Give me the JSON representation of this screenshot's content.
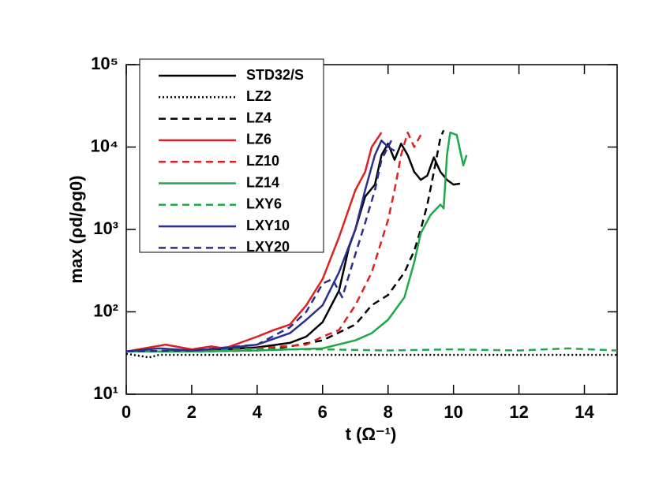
{
  "chart_data": {
    "type": "line",
    "xlabel": "t (Ω⁻¹)",
    "ylabel": "max (ρd/ρg0)",
    "xlim": [
      0,
      15
    ],
    "xticks": [
      0,
      2,
      4,
      6,
      8,
      10,
      12,
      14
    ],
    "ylim": [
      10,
      100000
    ],
    "yticks": [
      {
        "value": 10,
        "label": "10¹"
      },
      {
        "value": 100,
        "label": "10²"
      },
      {
        "value": 1000,
        "label": "10³"
      },
      {
        "value": 10000,
        "label": "10⁴"
      },
      {
        "value": 100000,
        "label": "10⁵"
      }
    ],
    "log_y": true,
    "legend": "upper left",
    "series": [
      {
        "name": "STD32/S",
        "color": "#000000",
        "style": "solid",
        "x": [
          0,
          1,
          2,
          3,
          4,
          5,
          5.5,
          6,
          6.5,
          6.8,
          7,
          7.3,
          7.6,
          7.8,
          8.0,
          8.2,
          8.4,
          8.6,
          8.8,
          9.0,
          9.2,
          9.4,
          9.6,
          9.8,
          10.0,
          10.2
        ],
        "values": [
          33,
          33,
          34,
          35,
          37,
          42,
          50,
          75,
          180,
          600,
          1000,
          2500,
          3500,
          8000,
          11000,
          7000,
          11000,
          8000,
          5000,
          4000,
          4500,
          7500,
          5000,
          4000,
          3500,
          3600
        ]
      },
      {
        "name": "LZ2",
        "color": "#000000",
        "style": "dotted",
        "x": [
          0,
          0.7,
          1,
          2,
          4,
          6,
          8,
          10,
          12,
          15
        ],
        "values": [
          31,
          28,
          30,
          30,
          30,
          30,
          30,
          30,
          30,
          30
        ]
      },
      {
        "name": "LZ4",
        "color": "#000000",
        "style": "dashed",
        "x": [
          0,
          2,
          4,
          5,
          6,
          7,
          7.5,
          8,
          8.5,
          8.8,
          9,
          9.2,
          9.4,
          9.6,
          9.7
        ],
        "values": [
          33,
          33,
          34,
          38,
          45,
          70,
          120,
          160,
          300,
          550,
          1000,
          2000,
          5000,
          13000,
          16000
        ]
      },
      {
        "name": "LZ6",
        "color": "#e02020",
        "style": "solid",
        "x": [
          0,
          1.2,
          2,
          2.6,
          3,
          4,
          4.5,
          5,
          5.5,
          6,
          6.5,
          7,
          7.3,
          7.5,
          7.8
        ],
        "values": [
          33,
          40,
          35,
          38,
          36,
          50,
          60,
          70,
          120,
          250,
          800,
          3000,
          5000,
          10000,
          15000
        ]
      },
      {
        "name": "LZ10",
        "color": "#e02020",
        "style": "dashed",
        "x": [
          0,
          2,
          4,
          5.5,
          6,
          6.5,
          7,
          7.5,
          8,
          8.2,
          8.4,
          8.6,
          8.8,
          9.0
        ],
        "values": [
          33,
          34,
          36,
          40,
          50,
          60,
          120,
          300,
          1300,
          3000,
          8000,
          15000,
          10000,
          14000
        ]
      },
      {
        "name": "LZ14",
        "color": "#1fa84a",
        "style": "solid",
        "x": [
          0,
          2,
          4,
          6,
          7,
          7.5,
          8,
          8.5,
          8.8,
          9,
          9.3,
          9.6,
          9.7,
          9.8,
          9.9,
          10.1,
          10.3,
          10.4
        ],
        "values": [
          33,
          33,
          34,
          36,
          45,
          55,
          80,
          150,
          400,
          900,
          1500,
          2000,
          1800,
          8000,
          15000,
          14000,
          6000,
          8000
        ]
      },
      {
        "name": "LXY6",
        "color": "#1fa84a",
        "style": "dashed",
        "x": [
          0,
          2,
          4,
          6,
          8,
          10,
          12,
          13.5,
          15
        ],
        "values": [
          33,
          34,
          35,
          35,
          34,
          35,
          34,
          36,
          34
        ]
      },
      {
        "name": "LXY10",
        "color": "#2a2f8f",
        "style": "solid",
        "x": [
          0,
          1,
          2,
          3,
          4,
          5,
          5.5,
          6,
          6.5,
          7,
          7.3,
          7.6,
          7.8,
          8.0,
          8.1
        ],
        "values": [
          33,
          36,
          34,
          36,
          40,
          55,
          80,
          120,
          300,
          1000,
          3000,
          8000,
          12000,
          10000,
          12000
        ]
      },
      {
        "name": "LXY20",
        "color": "#2a2f8f",
        "style": "dashed",
        "x": [
          0,
          2,
          4,
          5,
          5.5,
          6,
          6.3,
          6.6,
          7,
          7.3,
          7.6,
          7.8,
          8.0,
          8.2
        ],
        "values": [
          33,
          34,
          40,
          65,
          100,
          220,
          250,
          150,
          500,
          1200,
          3000,
          7000,
          10000,
          9000
        ]
      }
    ]
  }
}
